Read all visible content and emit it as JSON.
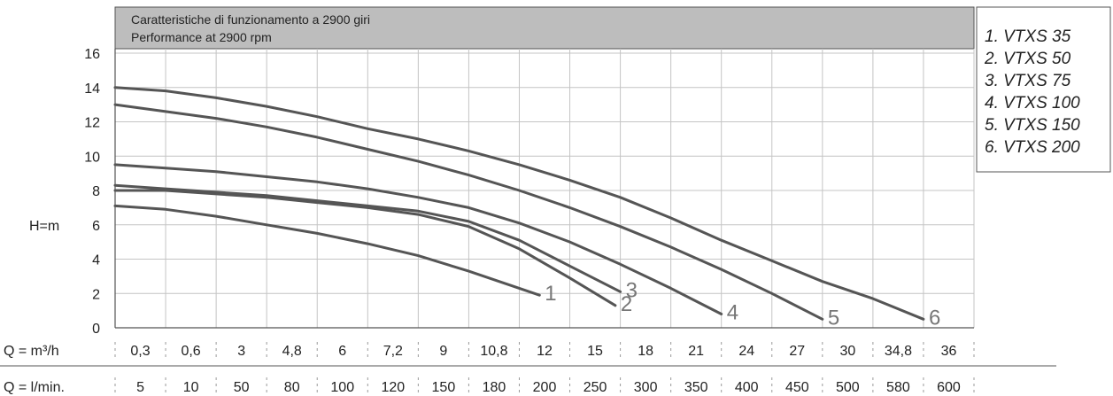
{
  "chart_data": {
    "type": "line",
    "title": "Caratteristiche di funzionamento a 2900 giri",
    "subtitle": "Performance at 2900 rpm",
    "ylabel": "H=m",
    "ylim": [
      0,
      16
    ],
    "yticks": [
      0,
      2,
      4,
      6,
      8,
      10,
      12,
      14,
      16
    ],
    "grid": true,
    "legend_position": "right",
    "q_m3h_label": "Q = m³/h",
    "q_lmin_label": "Q = l/min.",
    "categories_m3h": [
      "0,3",
      "0,6",
      "3",
      "4,8",
      "6",
      "7,2",
      "9",
      "10,8",
      "12",
      "15",
      "18",
      "21",
      "24",
      "27",
      "30",
      "34,8",
      "36"
    ],
    "categories_lmin": [
      "5",
      "10",
      "50",
      "80",
      "100",
      "120",
      "150",
      "180",
      "200",
      "250",
      "300",
      "350",
      "400",
      "450",
      "500",
      "580",
      "600"
    ],
    "series": [
      {
        "name": "1. VTXS 35",
        "label": "1",
        "color": "#555555",
        "x": [
          0,
          1,
          2,
          3,
          4,
          5,
          6,
          7,
          8,
          8.4
        ],
        "y": [
          7.1,
          6.9,
          6.5,
          6.0,
          5.5,
          4.9,
          4.2,
          3.3,
          2.3,
          1.9
        ]
      },
      {
        "name": "2. VTXS 50",
        "label": "2",
        "color": "#555555",
        "x": [
          0,
          1,
          2,
          3,
          4,
          5,
          6,
          7,
          8,
          9,
          9.9
        ],
        "y": [
          8.0,
          8.0,
          7.8,
          7.6,
          7.3,
          7.0,
          6.6,
          5.9,
          4.6,
          2.9,
          1.3
        ]
      },
      {
        "name": "3. VTXS 75",
        "label": "3",
        "color": "#555555",
        "x": [
          0,
          1,
          2,
          3,
          4,
          5,
          6,
          7,
          8,
          9,
          10.0
        ],
        "y": [
          8.3,
          8.1,
          7.9,
          7.7,
          7.4,
          7.1,
          6.8,
          6.2,
          5.1,
          3.6,
          2.1
        ]
      },
      {
        "name": "4. VTXS 100",
        "label": "4",
        "color": "#555555",
        "x": [
          0,
          1,
          2,
          3,
          4,
          5,
          6,
          7,
          8,
          9,
          10,
          11,
          12.0
        ],
        "y": [
          9.5,
          9.3,
          9.1,
          8.8,
          8.5,
          8.1,
          7.6,
          7.0,
          6.1,
          5.0,
          3.7,
          2.3,
          0.8
        ]
      },
      {
        "name": "5. VTXS 150",
        "label": "5",
        "color": "#555555",
        "x": [
          0,
          1,
          2,
          3,
          4,
          5,
          6,
          7,
          8,
          9,
          10,
          11,
          12,
          13,
          14.0
        ],
        "y": [
          13.0,
          12.6,
          12.2,
          11.7,
          11.1,
          10.4,
          9.7,
          8.9,
          8.0,
          7.0,
          5.9,
          4.7,
          3.4,
          2.0,
          0.5
        ]
      },
      {
        "name": "6. VTXS 200",
        "label": "6",
        "color": "#555555",
        "x": [
          0,
          1,
          2,
          3,
          4,
          5,
          6,
          7,
          8,
          9,
          10,
          11,
          12,
          13,
          14,
          15,
          16.0
        ],
        "y": [
          14.0,
          13.8,
          13.4,
          12.9,
          12.3,
          11.6,
          11.0,
          10.3,
          9.5,
          8.6,
          7.6,
          6.4,
          5.1,
          3.9,
          2.7,
          1.7,
          0.5
        ]
      }
    ]
  },
  "colors": {
    "header_bg": "#bdbdbd",
    "grid": "#bdbdbd",
    "curve": "#555555",
    "curve_label": "#777777"
  }
}
